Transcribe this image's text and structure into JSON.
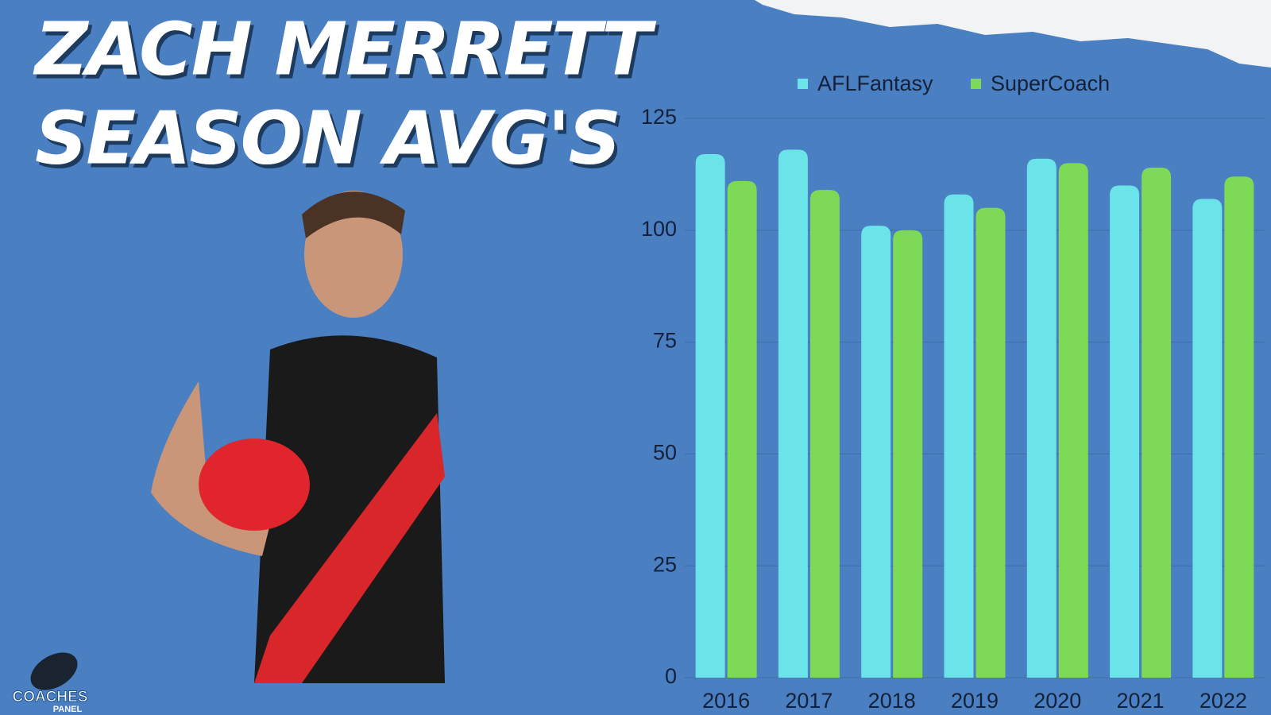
{
  "title_lines": [
    "ZACH MERRETT",
    "SEASON AVG'S"
  ],
  "logo": {
    "line1": "COACHES",
    "line2": "PANEL"
  },
  "chart_data": {
    "type": "bar",
    "categories": [
      "2016",
      "2017",
      "2018",
      "2019",
      "2020",
      "2021",
      "2022"
    ],
    "series": [
      {
        "name": "AFLFantasy",
        "color": "#6be4e9",
        "values": [
          117,
          118,
          101,
          108,
          116,
          110,
          107
        ]
      },
      {
        "name": "SuperCoach",
        "color": "#7ed957",
        "values": [
          111,
          109,
          100,
          105,
          115,
          114,
          112
        ]
      }
    ],
    "ylim": [
      0,
      125
    ],
    "yticks": [
      0,
      25,
      50,
      75,
      100,
      125
    ],
    "grid": true,
    "legend": "top"
  }
}
